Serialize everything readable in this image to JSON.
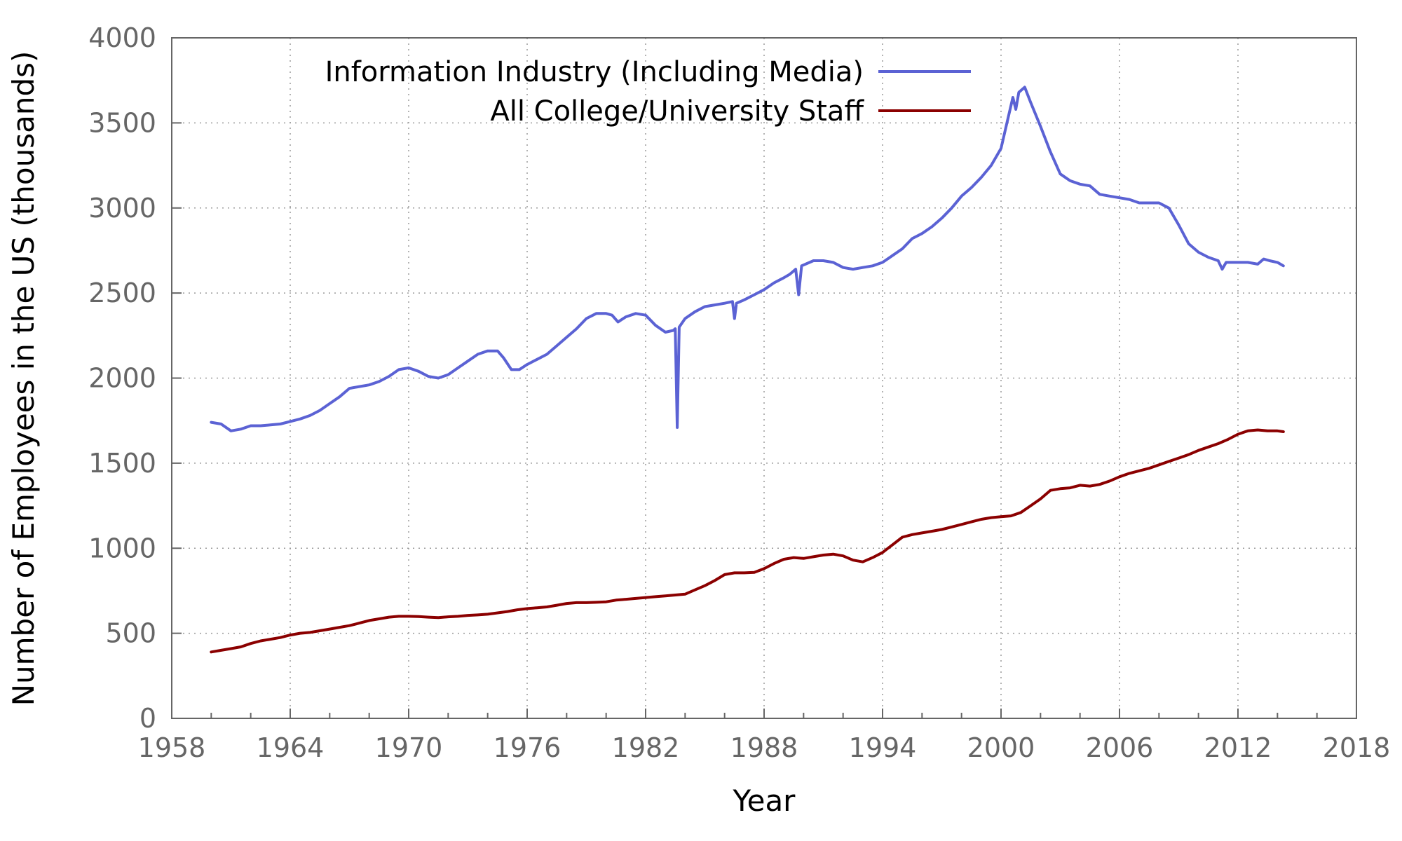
{
  "chart_data": {
    "type": "line",
    "title": "",
    "xlabel": "Year",
    "ylabel": "Number of Employees in the US (thousands)",
    "xlim": [
      1958,
      2018
    ],
    "ylim": [
      0,
      4000
    ],
    "xticks": [
      1958,
      1964,
      1970,
      1976,
      1982,
      1988,
      1994,
      2000,
      2006,
      2012,
      2018
    ],
    "yticks": [
      0,
      500,
      1000,
      1500,
      2000,
      2500,
      3000,
      3500,
      4000
    ],
    "x_minor_interval": 2,
    "grid": true,
    "legend_position": "top",
    "series": [
      {
        "name": "Information Industry (Including Media)",
        "color": "#5b62d4",
        "points": [
          [
            1960.0,
            1740
          ],
          [
            1960.5,
            1730
          ],
          [
            1961.0,
            1690
          ],
          [
            1961.5,
            1700
          ],
          [
            1962.0,
            1720
          ],
          [
            1962.5,
            1720
          ],
          [
            1963.0,
            1725
          ],
          [
            1963.5,
            1730
          ],
          [
            1964.0,
            1745
          ],
          [
            1964.5,
            1760
          ],
          [
            1965.0,
            1780
          ],
          [
            1965.5,
            1810
          ],
          [
            1966.0,
            1850
          ],
          [
            1966.5,
            1890
          ],
          [
            1967.0,
            1940
          ],
          [
            1967.5,
            1950
          ],
          [
            1968.0,
            1960
          ],
          [
            1968.5,
            1980
          ],
          [
            1969.0,
            2010
          ],
          [
            1969.5,
            2050
          ],
          [
            1970.0,
            2060
          ],
          [
            1970.5,
            2040
          ],
          [
            1971.0,
            2010
          ],
          [
            1971.5,
            2000
          ],
          [
            1972.0,
            2020
          ],
          [
            1972.5,
            2060
          ],
          [
            1973.0,
            2100
          ],
          [
            1973.5,
            2140
          ],
          [
            1974.0,
            2160
          ],
          [
            1974.5,
            2160
          ],
          [
            1974.8,
            2120
          ],
          [
            1975.2,
            2050
          ],
          [
            1975.6,
            2050
          ],
          [
            1976.0,
            2080
          ],
          [
            1976.5,
            2110
          ],
          [
            1977.0,
            2140
          ],
          [
            1977.5,
            2190
          ],
          [
            1978.0,
            2240
          ],
          [
            1978.5,
            2290
          ],
          [
            1979.0,
            2350
          ],
          [
            1979.5,
            2380
          ],
          [
            1980.0,
            2380
          ],
          [
            1980.3,
            2370
          ],
          [
            1980.6,
            2330
          ],
          [
            1981.0,
            2360
          ],
          [
            1981.5,
            2380
          ],
          [
            1982.0,
            2370
          ],
          [
            1982.5,
            2310
          ],
          [
            1983.0,
            2270
          ],
          [
            1983.4,
            2280
          ],
          [
            1983.5,
            2290
          ],
          [
            1983.6,
            1710
          ],
          [
            1983.7,
            2300
          ],
          [
            1984.0,
            2350
          ],
          [
            1984.5,
            2390
          ],
          [
            1985.0,
            2420
          ],
          [
            1985.5,
            2430
          ],
          [
            1986.0,
            2440
          ],
          [
            1986.4,
            2450
          ],
          [
            1986.5,
            2350
          ],
          [
            1986.6,
            2440
          ],
          [
            1987.0,
            2460
          ],
          [
            1987.5,
            2490
          ],
          [
            1988.0,
            2520
          ],
          [
            1988.5,
            2560
          ],
          [
            1989.0,
            2590
          ],
          [
            1989.3,
            2610
          ],
          [
            1989.6,
            2640
          ],
          [
            1989.75,
            2490
          ],
          [
            1989.9,
            2660
          ],
          [
            1990.5,
            2690
          ],
          [
            1991.0,
            2690
          ],
          [
            1991.5,
            2680
          ],
          [
            1992.0,
            2650
          ],
          [
            1992.5,
            2640
          ],
          [
            1993.0,
            2650
          ],
          [
            1993.5,
            2660
          ],
          [
            1994.0,
            2680
          ],
          [
            1994.5,
            2720
          ],
          [
            1995.0,
            2760
          ],
          [
            1995.5,
            2820
          ],
          [
            1996.0,
            2850
          ],
          [
            1996.5,
            2890
          ],
          [
            1997.0,
            2940
          ],
          [
            1997.5,
            3000
          ],
          [
            1998.0,
            3070
          ],
          [
            1998.5,
            3120
          ],
          [
            1999.0,
            3180
          ],
          [
            1999.5,
            3250
          ],
          [
            2000.0,
            3350
          ],
          [
            2000.3,
            3500
          ],
          [
            2000.6,
            3650
          ],
          [
            2000.75,
            3580
          ],
          [
            2000.9,
            3680
          ],
          [
            2001.2,
            3710
          ],
          [
            2001.5,
            3620
          ],
          [
            2002.0,
            3480
          ],
          [
            2002.5,
            3330
          ],
          [
            2003.0,
            3200
          ],
          [
            2003.5,
            3160
          ],
          [
            2004.0,
            3140
          ],
          [
            2004.5,
            3130
          ],
          [
            2005.0,
            3080
          ],
          [
            2005.5,
            3070
          ],
          [
            2006.0,
            3060
          ],
          [
            2006.5,
            3050
          ],
          [
            2007.0,
            3030
          ],
          [
            2007.5,
            3030
          ],
          [
            2008.0,
            3030
          ],
          [
            2008.5,
            3000
          ],
          [
            2009.0,
            2900
          ],
          [
            2009.5,
            2790
          ],
          [
            2010.0,
            2740
          ],
          [
            2010.5,
            2710
          ],
          [
            2011.0,
            2690
          ],
          [
            2011.2,
            2640
          ],
          [
            2011.4,
            2680
          ],
          [
            2012.0,
            2680
          ],
          [
            2012.5,
            2680
          ],
          [
            2013.0,
            2670
          ],
          [
            2013.3,
            2700
          ],
          [
            2013.6,
            2690
          ],
          [
            2014.0,
            2680
          ],
          [
            2014.3,
            2660
          ]
        ]
      },
      {
        "name": "All College/University Staff",
        "color": "#8b0000",
        "points": [
          [
            1960.0,
            390
          ],
          [
            1960.5,
            400
          ],
          [
            1961.0,
            410
          ],
          [
            1961.5,
            420
          ],
          [
            1962.0,
            440
          ],
          [
            1962.5,
            455
          ],
          [
            1963.0,
            465
          ],
          [
            1963.5,
            475
          ],
          [
            1964.0,
            490
          ],
          [
            1964.5,
            500
          ],
          [
            1965.0,
            505
          ],
          [
            1965.5,
            515
          ],
          [
            1966.0,
            525
          ],
          [
            1966.5,
            535
          ],
          [
            1967.0,
            545
          ],
          [
            1967.5,
            560
          ],
          [
            1968.0,
            575
          ],
          [
            1968.5,
            585
          ],
          [
            1969.0,
            595
          ],
          [
            1969.5,
            600
          ],
          [
            1970.0,
            600
          ],
          [
            1970.5,
            598
          ],
          [
            1971.0,
            595
          ],
          [
            1971.5,
            592
          ],
          [
            1972.0,
            597
          ],
          [
            1972.5,
            600
          ],
          [
            1973.0,
            605
          ],
          [
            1973.5,
            608
          ],
          [
            1974.0,
            612
          ],
          [
            1974.5,
            620
          ],
          [
            1975.0,
            628
          ],
          [
            1975.5,
            638
          ],
          [
            1976.0,
            645
          ],
          [
            1976.5,
            650
          ],
          [
            1977.0,
            655
          ],
          [
            1977.5,
            665
          ],
          [
            1978.0,
            675
          ],
          [
            1978.5,
            680
          ],
          [
            1979.0,
            680
          ],
          [
            1979.5,
            682
          ],
          [
            1980.0,
            685
          ],
          [
            1980.5,
            695
          ],
          [
            1981.0,
            700
          ],
          [
            1981.5,
            705
          ],
          [
            1982.0,
            710
          ],
          [
            1982.5,
            715
          ],
          [
            1983.0,
            720
          ],
          [
            1983.5,
            725
          ],
          [
            1984.0,
            730
          ],
          [
            1984.5,
            755
          ],
          [
            1985.0,
            780
          ],
          [
            1985.5,
            810
          ],
          [
            1986.0,
            845
          ],
          [
            1986.5,
            855
          ],
          [
            1987.0,
            855
          ],
          [
            1987.5,
            858
          ],
          [
            1988.0,
            880
          ],
          [
            1988.5,
            910
          ],
          [
            1989.0,
            935
          ],
          [
            1989.5,
            945
          ],
          [
            1990.0,
            940
          ],
          [
            1990.5,
            950
          ],
          [
            1991.0,
            960
          ],
          [
            1991.5,
            965
          ],
          [
            1992.0,
            955
          ],
          [
            1992.5,
            930
          ],
          [
            1993.0,
            920
          ],
          [
            1993.5,
            945
          ],
          [
            1994.0,
            975
          ],
          [
            1994.5,
            1020
          ],
          [
            1995.0,
            1065
          ],
          [
            1995.5,
            1080
          ],
          [
            1996.0,
            1090
          ],
          [
            1996.5,
            1100
          ],
          [
            1997.0,
            1110
          ],
          [
            1997.5,
            1125
          ],
          [
            1998.0,
            1140
          ],
          [
            1998.5,
            1155
          ],
          [
            1999.0,
            1170
          ],
          [
            1999.5,
            1180
          ],
          [
            2000.0,
            1185
          ],
          [
            2000.5,
            1190
          ],
          [
            2001.0,
            1210
          ],
          [
            2001.5,
            1250
          ],
          [
            2002.0,
            1290
          ],
          [
            2002.5,
            1340
          ],
          [
            2003.0,
            1350
          ],
          [
            2003.5,
            1355
          ],
          [
            2004.0,
            1370
          ],
          [
            2004.5,
            1365
          ],
          [
            2005.0,
            1375
          ],
          [
            2005.5,
            1395
          ],
          [
            2006.0,
            1420
          ],
          [
            2006.5,
            1440
          ],
          [
            2007.0,
            1455
          ],
          [
            2007.5,
            1470
          ],
          [
            2008.0,
            1490
          ],
          [
            2008.5,
            1510
          ],
          [
            2009.0,
            1530
          ],
          [
            2009.5,
            1550
          ],
          [
            2010.0,
            1575
          ],
          [
            2010.5,
            1595
          ],
          [
            2011.0,
            1615
          ],
          [
            2011.5,
            1640
          ],
          [
            2012.0,
            1670
          ],
          [
            2012.5,
            1690
          ],
          [
            2013.0,
            1695
          ],
          [
            2013.5,
            1690
          ],
          [
            2014.0,
            1690
          ],
          [
            2014.3,
            1685
          ]
        ]
      }
    ]
  }
}
